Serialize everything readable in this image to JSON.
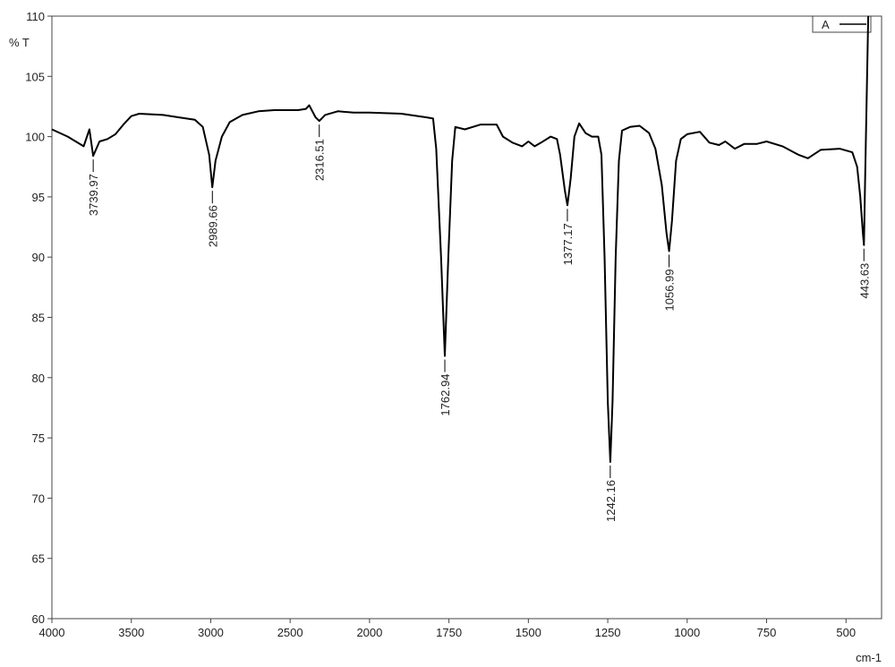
{
  "chart_data": {
    "type": "line",
    "y_label": "% T",
    "x_label": "cm-1",
    "xlim": [
      4000,
      388
    ],
    "ylim": [
      60,
      110
    ],
    "xticks": [
      4000,
      3500,
      3000,
      2500,
      2000,
      1750,
      1500,
      1250,
      1000,
      750,
      500
    ],
    "yticks": [
      60,
      65,
      70,
      75,
      80,
      85,
      90,
      95,
      100,
      105,
      110
    ],
    "legend": "top-right",
    "series": [
      {
        "name": "A",
        "color": "#000000",
        "x": [
          4000,
          3900,
          3800,
          3764,
          3740,
          3700,
          3650,
          3600,
          3550,
          3500,
          3450,
          3300,
          3200,
          3100,
          3050,
          3010,
          2990,
          2970,
          2930,
          2880,
          2800,
          2700,
          2600,
          2450,
          2400,
          2380,
          2340,
          2316,
          2280,
          2200,
          2100,
          2000,
          1900,
          1820,
          1800,
          1790,
          1775,
          1763,
          1752,
          1740,
          1730,
          1700,
          1650,
          1600,
          1580,
          1550,
          1520,
          1500,
          1480,
          1460,
          1430,
          1410,
          1400,
          1385,
          1377,
          1367,
          1355,
          1340,
          1320,
          1300,
          1280,
          1270,
          1260,
          1250,
          1242,
          1235,
          1225,
          1215,
          1205,
          1180,
          1150,
          1120,
          1100,
          1080,
          1065,
          1057,
          1048,
          1035,
          1020,
          1000,
          960,
          930,
          900,
          880,
          850,
          820,
          780,
          750,
          700,
          650,
          620,
          580,
          520,
          480,
          465,
          455,
          447,
          443.6,
          440,
          430
        ],
        "values": [
          100.6,
          100.0,
          99.2,
          100.6,
          98.4,
          99.6,
          99.8,
          100.2,
          101.0,
          101.7,
          101.9,
          101.8,
          101.6,
          101.4,
          100.8,
          98.5,
          95.8,
          98.0,
          100.0,
          101.2,
          101.8,
          102.1,
          102.2,
          102.2,
          102.3,
          102.6,
          101.6,
          101.3,
          101.8,
          102.1,
          102.0,
          102.0,
          101.9,
          101.6,
          101.5,
          99.0,
          90.0,
          81.8,
          90.0,
          98.0,
          100.8,
          100.6,
          101.0,
          101.0,
          100.0,
          99.5,
          99.2,
          99.6,
          99.2,
          99.5,
          100.0,
          99.8,
          98.5,
          95.5,
          94.3,
          96.5,
          100.0,
          101.1,
          100.3,
          100.0,
          100.0,
          98.5,
          90.0,
          78.0,
          73.0,
          78.0,
          90.0,
          98.0,
          100.5,
          100.8,
          100.9,
          100.3,
          99.0,
          96.0,
          92.0,
          90.5,
          93.0,
          98.0,
          99.8,
          100.2,
          100.4,
          99.5,
          99.3,
          99.6,
          99.0,
          99.4,
          99.4,
          99.6,
          99.2,
          98.5,
          98.2,
          98.9,
          99.0,
          98.7,
          97.5,
          95.0,
          92.0,
          91.0,
          96.0,
          110.0
        ]
      }
    ],
    "peaks": [
      {
        "x": 3739.97,
        "y": 98.4
      },
      {
        "x": 2989.66,
        "y": 95.8
      },
      {
        "x": 2316.51,
        "y": 101.3
      },
      {
        "x": 1762.94,
        "y": 81.8
      },
      {
        "x": 1377.17,
        "y": 94.3
      },
      {
        "x": 1242.16,
        "y": 73.0
      },
      {
        "x": 1056.99,
        "y": 90.5
      },
      {
        "x": 443.63,
        "y": 91.0
      }
    ]
  }
}
